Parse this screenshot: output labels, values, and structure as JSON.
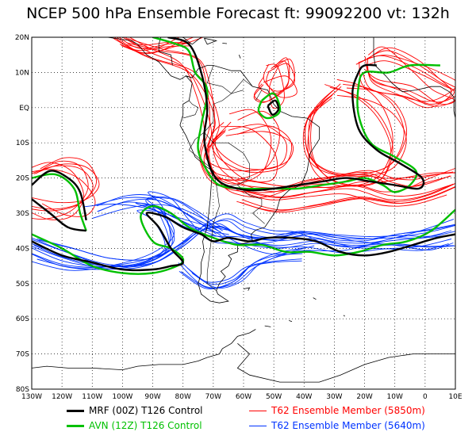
{
  "title": "NCEP 500 hPa Ensemble Forecast   ft: 99092200 vt: 132h",
  "map": {
    "lat_labels": [
      "20N",
      "10N",
      "EQ",
      "10S",
      "20S",
      "30S",
      "40S",
      "50S",
      "60S",
      "70S",
      "80S"
    ],
    "lon_labels": [
      "130W",
      "120W",
      "110W",
      "100W",
      "90W",
      "80W",
      "70W",
      "60W",
      "50W",
      "40W",
      "30W",
      "20W",
      "10W",
      "0",
      "10E"
    ],
    "lat_range": [
      20,
      -80
    ],
    "lon_range": [
      -130,
      10
    ]
  },
  "legend": {
    "items": [
      {
        "label": "MRF (00Z) T126 Control",
        "color": "#000000",
        "weight": "thick"
      },
      {
        "label": "T62 Ensemble Member (5850m)",
        "color": "#ff0000",
        "weight": "thin"
      },
      {
        "label": "AVN (12Z) T126 Control",
        "color": "#00c000",
        "weight": "thick"
      },
      {
        "label": "T62 Ensemble Member (5640m)",
        "color": "#0033ff",
        "weight": "thin"
      }
    ]
  },
  "colors": {
    "land": "#000000",
    "grid": "#000000",
    "red": "#ff0000",
    "blue": "#0033ff",
    "green": "#00c000",
    "black": "#000000"
  }
}
